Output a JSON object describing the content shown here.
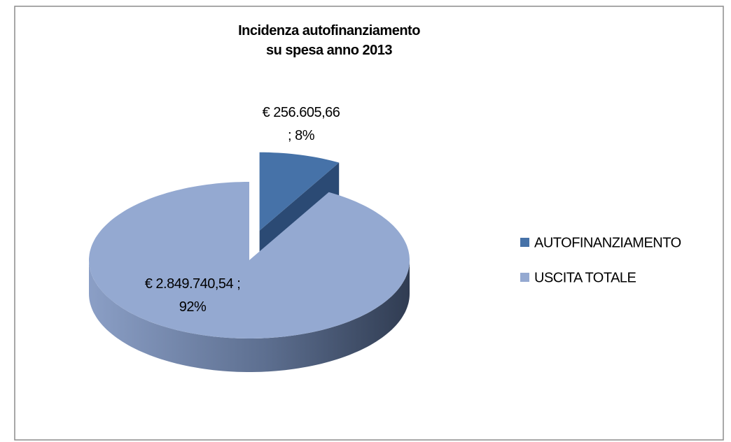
{
  "chart_data": {
    "type": "pie",
    "title": "Incidenza autofinanziamento\nsu spesa anno 2013",
    "categories": [
      "AUTOFINANZIAMENTO",
      "USCITA TOTALE"
    ],
    "values": [
      256605.66,
      2849740.54
    ],
    "value_labels": [
      "€ 256.605,66\n; 8%",
      "€ 2.849.740,54 ;\n92%"
    ],
    "colors": [
      "#4672a8",
      "#94a9d1"
    ],
    "legend": "right"
  }
}
